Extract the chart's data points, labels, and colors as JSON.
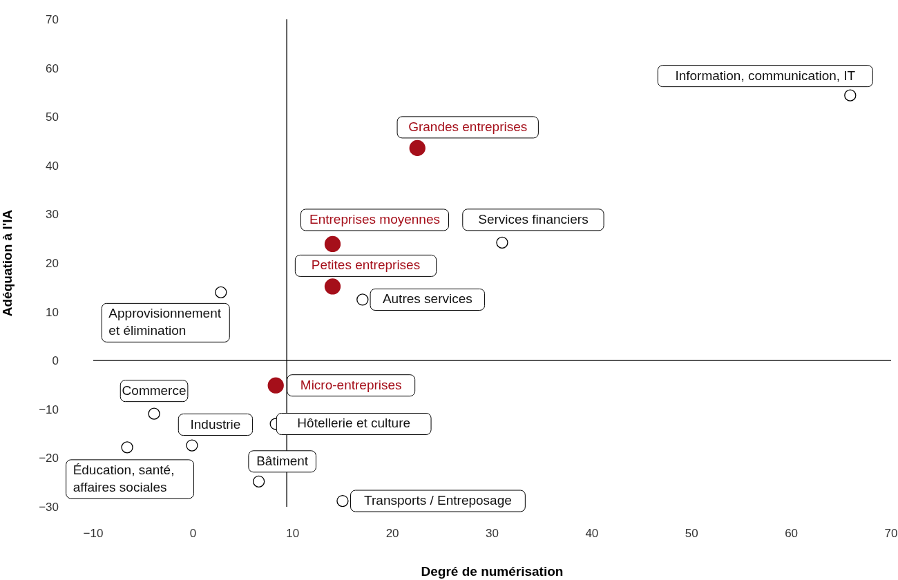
{
  "chart_data": {
    "type": "scatter",
    "xlabel": "Degré de numérisation",
    "ylabel": "Adéquation à l'IA",
    "xlim": [
      -10,
      70
    ],
    "xticks": [
      -10,
      0,
      10,
      20,
      30,
      40,
      50,
      60,
      70
    ],
    "ylim": [
      -30,
      70
    ],
    "yticks": [
      -30,
      -20,
      -10,
      0,
      10,
      20,
      30,
      40,
      50,
      60,
      70
    ],
    "marker": "circle",
    "ref_lines": [
      {
        "axis": "x",
        "value": 9.4
      },
      {
        "axis": "y",
        "value": 0
      }
    ],
    "series": [
      {
        "color": "#000000",
        "x": [
          65.9,
          31.0,
          17.0,
          2.8,
          -3.9,
          8.3,
          -0.1,
          -6.6,
          6.6,
          15.0
        ],
        "values": [
          54.4,
          24.2,
          12.5,
          14.0,
          -10.9,
          -13.0,
          -17.4,
          -17.8,
          -24.8,
          -28.8
        ],
        "value_labels": [
          "Information, communication, IT",
          "Services financiers",
          "Autres services",
          "Approvisionnement\net élimination",
          "Commerce",
          "Hôtellerie et culture",
          "Industrie",
          "Éducation, santé,\naffaires sociales",
          "Bâtiment",
          "Transports / Entreposage"
        ]
      },
      {
        "color": "#a50f1a",
        "x": [
          22.5,
          14.0,
          14.0,
          8.3
        ],
        "values": [
          43.6,
          23.9,
          15.2,
          -5.1
        ],
        "value_labels": [
          "Grandes entreprises",
          "Entreprises moyennes",
          "Petites entreprises",
          "Micro-entreprises"
        ]
      }
    ]
  }
}
